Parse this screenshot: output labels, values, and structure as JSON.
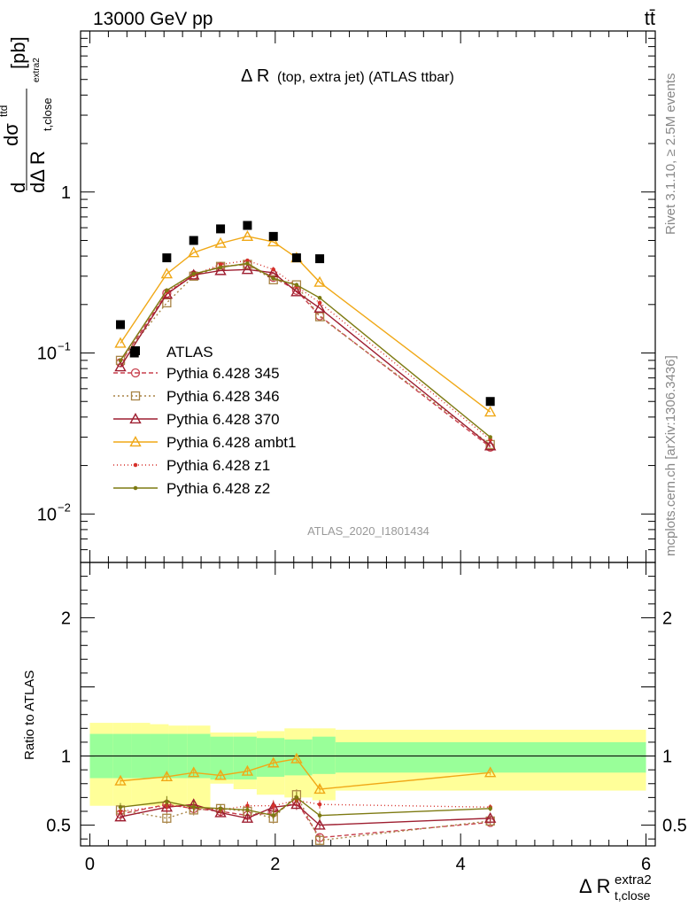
{
  "header": {
    "left": "13000 GeV pp",
    "right": "tt̄"
  },
  "side_labels": {
    "rivet": "Rivet 3.1.10, ≥ 2.5M events",
    "mcplots": "mcplots.cern.ch [arXiv:1306.3436]"
  },
  "chart_data": {
    "type": "scatter",
    "title": "Δ R",
    "title_small": "(top, extra jet) (ATLAS ttbar)",
    "watermark": "ATLAS_2020_I1801434",
    "main_ylabel": {
      "d": "d",
      "sigma": "dσ",
      "sup": "ttd",
      "denom": "dΔ R",
      "sub": "t,close",
      "subsup": "extra2",
      "unit": "[pb]"
    },
    "xlabel": {
      "main": "Δ R",
      "sup": "extra2",
      "sub": "t,close"
    },
    "ratio_ylabel": "Ratio to ATLAS",
    "main_ylim": [
      0.005,
      10
    ],
    "main_yscale": "log",
    "main_yticks": [
      {
        "v": 0.01,
        "base": "10",
        "exp": "−2"
      },
      {
        "v": 0.1,
        "base": "10",
        "exp": "−1"
      },
      {
        "v": 1,
        "base": "1",
        "exp": ""
      }
    ],
    "ratio_ylim": [
      0.35,
      2.4
    ],
    "ratio_yticks": [
      {
        "v": 0.5,
        "label": "0.5"
      },
      {
        "v": 1,
        "label": "1"
      },
      {
        "v": 2,
        "label": "2"
      }
    ],
    "xlim": [
      -0.1,
      6.1
    ],
    "xticks": [
      {
        "v": 0,
        "label": "0"
      },
      {
        "v": 2,
        "label": "2"
      },
      {
        "v": 4,
        "label": "4"
      },
      {
        "v": 6,
        "label": "6"
      }
    ],
    "bin_edges": [
      0.0,
      0.25,
      0.45,
      0.65,
      0.85,
      1.05,
      1.3,
      1.55,
      1.8,
      2.1,
      2.4,
      2.65,
      6.0
    ],
    "x": [
      0.33,
      0.48,
      0.83,
      1.12,
      1.41,
      1.7,
      1.98,
      2.23,
      2.48,
      4.32
    ],
    "data": {
      "name": "ATLAS",
      "values": [
        0.15,
        0.1,
        0.39,
        0.5,
        0.59,
        0.62,
        0.53,
        0.39,
        0.385,
        0.05
      ],
      "band_inner": [
        [
          0.84,
          1.16
        ],
        [
          0.84,
          1.16
        ],
        [
          0.84,
          1.16
        ],
        [
          0.84,
          1.16
        ],
        [
          0.84,
          1.16
        ],
        [
          0.84,
          1.16
        ],
        [
          0.83,
          1.14
        ],
        [
          0.83,
          1.14
        ],
        [
          0.85,
          1.13
        ],
        [
          0.86,
          1.12
        ],
        [
          0.87,
          1.14
        ],
        [
          0.88,
          1.1
        ]
      ],
      "band_outer": [
        [
          0.64,
          1.24
        ],
        [
          0.64,
          1.24
        ],
        [
          0.64,
          1.24
        ],
        [
          0.64,
          1.23
        ],
        [
          0.64,
          1.22
        ],
        [
          0.62,
          1.22
        ],
        [
          0.8,
          1.17
        ],
        [
          0.76,
          1.17
        ],
        [
          0.72,
          1.18
        ],
        [
          0.7,
          1.2
        ],
        [
          0.68,
          1.2
        ],
        [
          0.75,
          1.19
        ]
      ]
    },
    "series": [
      {
        "name": "Pythia 6.428 345",
        "color": "#c8414e",
        "dash": "5,3",
        "marker": "circle-open",
        "x": [
          0.33,
          0.83,
          1.12,
          1.41,
          1.7,
          1.98,
          2.23,
          2.48,
          4.32
        ],
        "values": [
          0.087,
          0.235,
          0.305,
          0.345,
          0.355,
          0.295,
          0.245,
          0.17,
          0.026
        ],
        "ratio": [
          0.58,
          0.65,
          0.62,
          0.6,
          0.57,
          0.59,
          0.67,
          0.41,
          0.52
        ],
        "ratio_err": [
          0.03,
          0.04,
          0.04,
          0.03,
          0.03,
          0.04,
          0.04,
          0.03,
          0.02
        ]
      },
      {
        "name": "Pythia 6.428 346",
        "color": "#a88445",
        "dash": "2,3",
        "marker": "square-open",
        "x": [
          0.33,
          0.83,
          1.12,
          1.41,
          1.7,
          1.98,
          2.23,
          2.48,
          4.32
        ],
        "values": [
          0.09,
          0.205,
          0.3,
          0.345,
          0.355,
          0.285,
          0.265,
          0.168,
          0.027
        ],
        "ratio": [
          0.61,
          0.55,
          0.61,
          0.62,
          0.6,
          0.55,
          0.72,
          0.39,
          0.53
        ],
        "ratio_err": [
          0.03,
          0.04,
          0.04,
          0.03,
          0.03,
          0.04,
          0.04,
          0.03,
          0.02
        ]
      },
      {
        "name": "Pythia 6.428 370",
        "color": "#9e1e30",
        "dash": "",
        "marker": "triangle-open",
        "x": [
          0.33,
          0.83,
          1.12,
          1.41,
          1.7,
          1.98,
          2.23,
          2.48,
          4.32
        ],
        "values": [
          0.082,
          0.232,
          0.305,
          0.325,
          0.33,
          0.315,
          0.24,
          0.19,
          0.0265
        ],
        "ratio": [
          0.56,
          0.63,
          0.65,
          0.59,
          0.55,
          0.63,
          0.65,
          0.5,
          0.55
        ],
        "ratio_err": [
          0.03,
          0.04,
          0.04,
          0.03,
          0.03,
          0.04,
          0.04,
          0.03,
          0.02
        ]
      },
      {
        "name": "Pythia 6.428 ambt1",
        "color": "#f0a817",
        "dash": "",
        "marker": "triangle-open",
        "x": [
          0.33,
          0.83,
          1.12,
          1.41,
          1.7,
          1.98,
          2.23,
          2.48,
          4.32
        ],
        "values": [
          0.115,
          0.31,
          0.42,
          0.48,
          0.53,
          0.49,
          0.39,
          0.275,
          0.043
        ],
        "ratio": [
          0.82,
          0.85,
          0.88,
          0.86,
          0.89,
          0.95,
          0.98,
          0.76,
          0.88
        ],
        "ratio_err": [
          0.03,
          0.03,
          0.03,
          0.03,
          0.03,
          0.03,
          0.03,
          0.03,
          0.02
        ]
      },
      {
        "name": "Pythia 6.428 z1",
        "color": "#d6312b",
        "dash": "1,3",
        "marker": "dot",
        "x": [
          0.33,
          0.83,
          1.12,
          1.41,
          1.7,
          1.98,
          2.23,
          2.48,
          4.32
        ],
        "values": [
          0.09,
          0.24,
          0.305,
          0.355,
          0.375,
          0.33,
          0.26,
          0.205,
          0.029
        ],
        "ratio": [
          0.6,
          0.64,
          0.63,
          0.61,
          0.64,
          0.64,
          0.68,
          0.65,
          0.63
        ],
        "ratio_err": [
          0.03,
          0.04,
          0.04,
          0.03,
          0.03,
          0.04,
          0.04,
          0.03,
          0.02
        ]
      },
      {
        "name": "Pythia 6.428 z2",
        "color": "#7d7a12",
        "dash": "",
        "marker": "dot",
        "x": [
          0.33,
          0.83,
          1.12,
          1.41,
          1.7,
          1.98,
          2.23,
          2.48,
          4.32
        ],
        "values": [
          0.09,
          0.245,
          0.31,
          0.34,
          0.36,
          0.29,
          0.265,
          0.22,
          0.03
        ],
        "ratio": [
          0.63,
          0.67,
          0.63,
          0.62,
          0.61,
          0.57,
          0.7,
          0.57,
          0.62
        ],
        "ratio_err": [
          0.03,
          0.04,
          0.04,
          0.03,
          0.03,
          0.04,
          0.04,
          0.03,
          0.02
        ]
      }
    ],
    "legend_position": "middle-left"
  }
}
